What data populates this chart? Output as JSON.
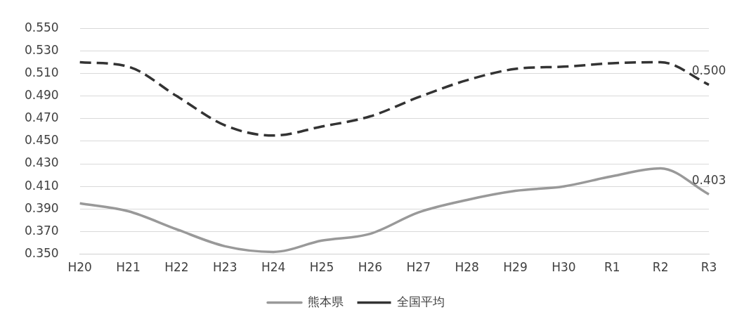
{
  "chart_data": {
    "type": "line",
    "categories": [
      "H20",
      "H21",
      "H22",
      "H23",
      "H24",
      "H25",
      "H26",
      "H27",
      "H28",
      "H29",
      "H30",
      "R1",
      "R2",
      "R3"
    ],
    "series": [
      {
        "name": "熊本県",
        "color": "#999999",
        "line_style": "solid",
        "values": [
          0.395,
          0.388,
          0.372,
          0.357,
          0.352,
          0.362,
          0.368,
          0.387,
          0.398,
          0.406,
          0.41,
          0.419,
          0.426,
          0.403
        ],
        "value_labels": [
          null,
          null,
          null,
          null,
          null,
          null,
          null,
          null,
          null,
          null,
          null,
          null,
          null,
          "0.403"
        ]
      },
      {
        "name": "全国平均",
        "color": "#333333",
        "line_style": "dashed",
        "values": [
          0.52,
          0.516,
          0.49,
          0.464,
          0.455,
          0.463,
          0.472,
          0.489,
          0.504,
          0.514,
          0.516,
          0.519,
          0.52,
          0.5
        ],
        "value_labels": [
          null,
          null,
          null,
          null,
          null,
          null,
          null,
          null,
          null,
          null,
          null,
          null,
          null,
          "0.500"
        ]
      }
    ],
    "ylim": [
      0.35,
      0.55
    ],
    "yticks": [
      {
        "value": 0.35,
        "label": "0.350"
      },
      {
        "value": 0.37,
        "label": "0.370"
      },
      {
        "value": 0.39,
        "label": "0.390"
      },
      {
        "value": 0.41,
        "label": "0.410"
      },
      {
        "value": 0.43,
        "label": "0.430"
      },
      {
        "value": 0.45,
        "label": "0.450"
      },
      {
        "value": 0.47,
        "label": "0.470"
      },
      {
        "value": 0.49,
        "label": "0.490"
      },
      {
        "value": 0.51,
        "label": "0.510"
      },
      {
        "value": 0.53,
        "label": "0.530"
      },
      {
        "value": 0.55,
        "label": "0.550"
      }
    ],
    "grid": "y",
    "legend": "bottom",
    "marker": "none"
  }
}
